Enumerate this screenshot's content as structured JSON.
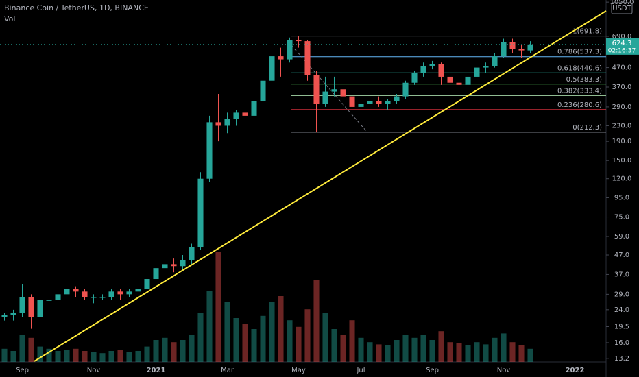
{
  "chart_data": {
    "type": "candlestick",
    "title": "Binance Coin / TetherUS, 1D, BINANCE",
    "subtitle": "Vol",
    "currency": "USDT",
    "countdown": "02:16:37",
    "log_scale": true,
    "grid": false,
    "up_color": "#26a69a",
    "down_color": "#ef5350",
    "categories": [
      null,
      null,
      "Sep",
      null,
      null,
      null,
      null,
      null,
      null,
      null,
      "Nov",
      null,
      null,
      null,
      null,
      null,
      null,
      "2021",
      null,
      null,
      null,
      null,
      null,
      null,
      null,
      "Mar",
      null,
      null,
      null,
      null,
      null,
      null,
      null,
      "May",
      null,
      null,
      null,
      null,
      null,
      null,
      "Jul",
      null,
      null,
      null,
      null,
      null,
      null,
      null,
      "Sep",
      null,
      null,
      null,
      null,
      null,
      null,
      null,
      "Nov",
      null,
      null,
      null,
      null,
      null,
      null,
      null,
      "2022",
      null,
      null,
      null
    ],
    "open": [
      22,
      22.5,
      23,
      28,
      22,
      27,
      27,
      29,
      31,
      30,
      28,
      28,
      28,
      30,
      29,
      30,
      31,
      35,
      40,
      42,
      41,
      44,
      52,
      120,
      240,
      230,
      250,
      270,
      260,
      310,
      400,
      540,
      520,
      660,
      650,
      430,
      300,
      350,
      360,
      330,
      290,
      300,
      310,
      300,
      310,
      330,
      390,
      440,
      480,
      490,
      420,
      390,
      380,
      420,
      470,
      480,
      540,
      640,
      590,
      580,
      null,
      null,
      null,
      null,
      null,
      null,
      null,
      null
    ],
    "high": [
      23,
      24,
      33,
      29,
      28,
      29,
      30,
      32,
      32,
      31,
      29,
      29,
      31,
      31,
      31,
      32,
      36,
      42,
      46,
      45,
      47,
      54,
      130,
      260,
      340,
      270,
      280,
      280,
      320,
      420,
      610,
      600,
      680,
      690,
      660,
      450,
      420,
      420,
      380,
      340,
      320,
      330,
      330,
      320,
      340,
      400,
      450,
      500,
      510,
      500,
      430,
      420,
      430,
      480,
      500,
      560,
      670,
      670,
      620,
      650,
      null,
      null,
      null,
      null,
      null,
      null,
      null,
      null
    ],
    "low": [
      21,
      21,
      22,
      19,
      21,
      24,
      26,
      28,
      28,
      27,
      26,
      27,
      27,
      27,
      28,
      29,
      29,
      34,
      38,
      38,
      39,
      42,
      50,
      115,
      190,
      210,
      230,
      230,
      250,
      300,
      390,
      420,
      500,
      600,
      400,
      212,
      290,
      330,
      310,
      220,
      280,
      290,
      290,
      280,
      300,
      320,
      380,
      420,
      460,
      380,
      370,
      330,
      370,
      410,
      440,
      470,
      530,
      560,
      530,
      560,
      null,
      null,
      null,
      null,
      null,
      null,
      null,
      null
    ],
    "close": [
      22.5,
      23,
      28,
      22,
      27,
      27,
      29,
      31,
      30,
      28,
      28,
      28,
      30,
      29,
      30,
      31,
      35,
      40,
      42,
      41,
      44,
      52,
      120,
      240,
      230,
      250,
      270,
      260,
      310,
      400,
      540,
      520,
      660,
      650,
      430,
      300,
      350,
      360,
      330,
      290,
      300,
      310,
      300,
      310,
      330,
      390,
      440,
      480,
      490,
      420,
      390,
      380,
      420,
      470,
      480,
      540,
      640,
      590,
      580,
      624.3,
      null,
      null,
      null,
      null,
      null,
      null,
      null,
      null
    ],
    "volume": [
      12,
      10,
      25,
      22,
      14,
      12,
      10,
      11,
      12,
      10,
      9,
      8,
      10,
      11,
      9,
      10,
      14,
      20,
      22,
      18,
      20,
      25,
      45,
      65,
      100,
      55,
      40,
      35,
      30,
      42,
      55,
      60,
      38,
      32,
      48,
      75,
      45,
      30,
      25,
      38,
      22,
      18,
      16,
      15,
      20,
      25,
      22,
      25,
      20,
      28,
      18,
      17,
      15,
      18,
      16,
      22,
      26,
      18,
      15,
      12,
      null,
      null,
      null,
      null,
      null,
      null,
      null,
      null
    ],
    "volume_lim": [
      0,
      100
    ],
    "ylim": [
      10.5,
      1078
    ],
    "yticks": [
      {
        "value": 1050,
        "label": "1050.0"
      },
      {
        "value": 690,
        "label": "690.0"
      },
      {
        "value": 470,
        "label": "470.0"
      },
      {
        "value": 370,
        "label": "370.0"
      },
      {
        "value": 290,
        "label": "290.0"
      },
      {
        "value": 230,
        "label": "230.0"
      },
      {
        "value": 190,
        "label": "190.0"
      },
      {
        "value": 150,
        "label": "150.0"
      },
      {
        "value": 120,
        "label": "120.0"
      },
      {
        "value": 95,
        "label": "95.0"
      },
      {
        "value": 75,
        "label": "75.0"
      },
      {
        "value": 59,
        "label": "59.0"
      },
      {
        "value": 47,
        "label": "47.0"
      },
      {
        "value": 37,
        "label": "37.0"
      },
      {
        "value": 29,
        "label": "29.0"
      },
      {
        "value": 24,
        "label": "24.0"
      },
      19.5,
      {
        "value": 16,
        "label": "16.0"
      },
      13.2
    ],
    "fib_levels": [
      {
        "label": "1(691.8)",
        "value": 691.8,
        "color": "#787b86"
      },
      {
        "label": "0.786(537.3)",
        "value": 537.3,
        "color": "#64b5f6"
      },
      {
        "label": "0.618(440.6)",
        "value": 440.6,
        "color": "#26a69a"
      },
      {
        "label": "0.5(383.3)",
        "value": 383.3,
        "color": "#4caf50"
      },
      {
        "label": "0.382(333.4)",
        "value": 333.4,
        "color": "#a5d6a7"
      },
      {
        "label": "0.236(280.6)",
        "value": 280.6,
        "color": "#f23645"
      },
      {
        "label": "0(212.3)",
        "value": 212.3,
        "color": "#787b86"
      }
    ]
  }
}
